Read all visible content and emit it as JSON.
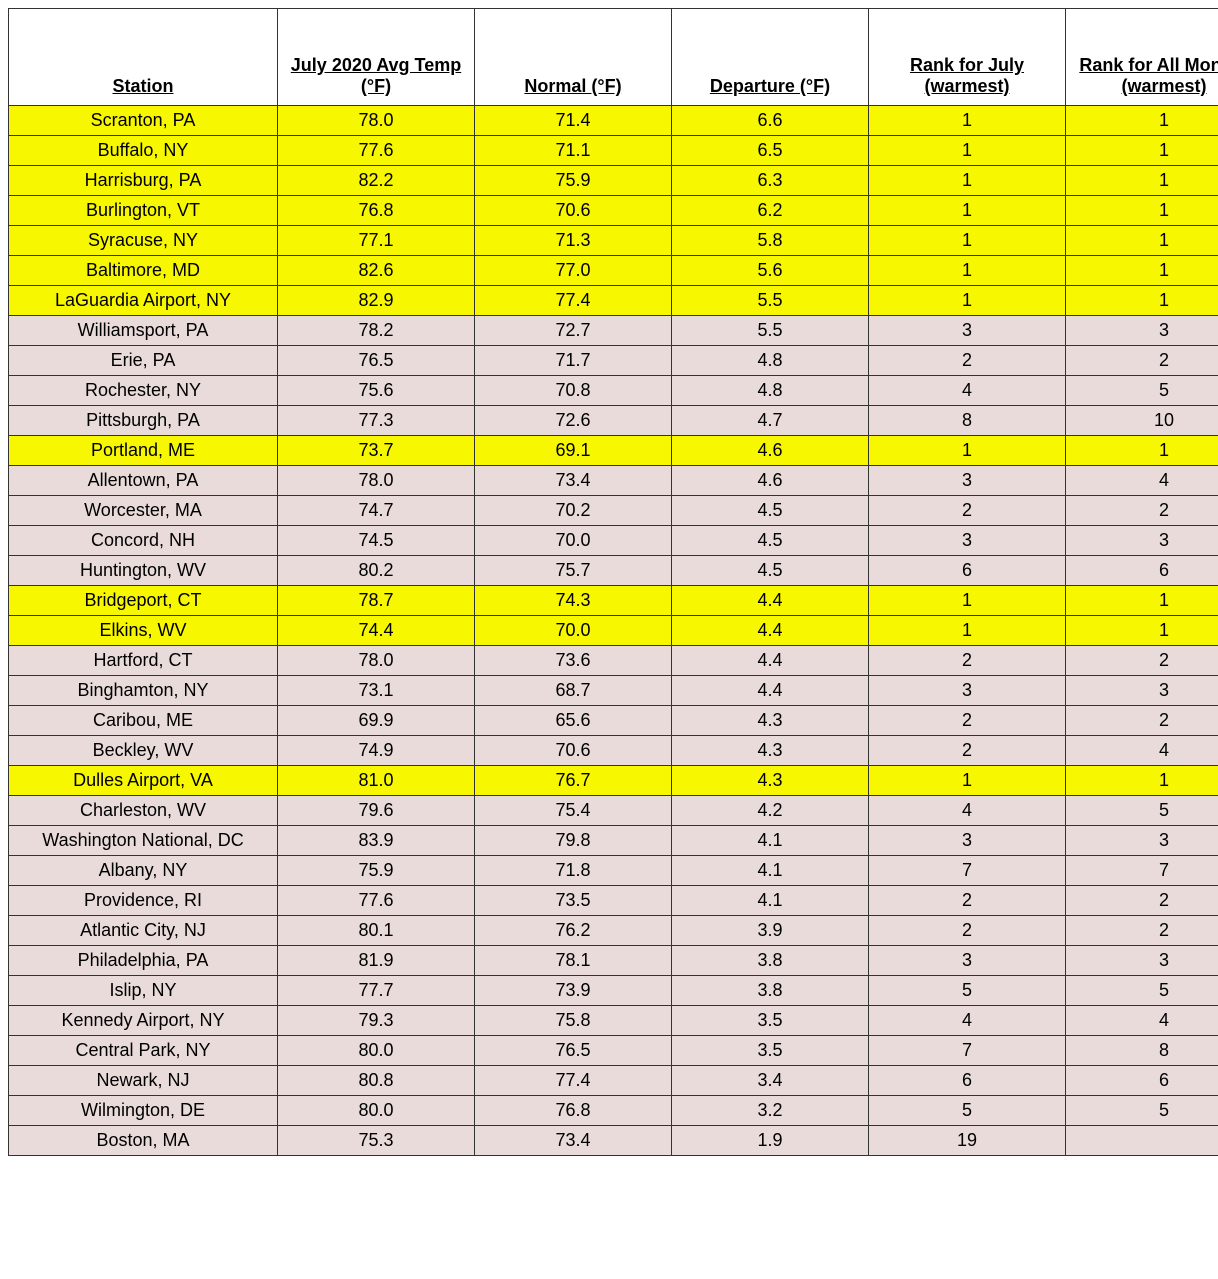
{
  "table": {
    "columns": [
      {
        "label": "Station",
        "class": "col-station"
      },
      {
        "label": "July 2020 Avg Temp (°F)",
        "class": "col-std"
      },
      {
        "label": "Normal (°F)",
        "class": "col-std"
      },
      {
        "label": "Departure (°F)",
        "class": "col-std"
      },
      {
        "label": "Rank for July (warmest)",
        "class": "col-std"
      },
      {
        "label": "Rank for All Months (warmest)",
        "class": "col-std"
      }
    ],
    "row_colors": {
      "highlight": "#f7f700",
      "normal": "#e8dbda"
    },
    "border_color": "#333333",
    "header_bg": "#ffffff",
    "font_family": "Verdana",
    "header_fontsize": 18,
    "cell_fontsize": 18,
    "rows": [
      {
        "station": "Scranton, PA",
        "avg": "78.0",
        "normal": "71.4",
        "dep": "6.6",
        "rank_july": "1",
        "rank_all": "1",
        "hl": true
      },
      {
        "station": "Buffalo, NY",
        "avg": "77.6",
        "normal": "71.1",
        "dep": "6.5",
        "rank_july": "1",
        "rank_all": "1",
        "hl": true
      },
      {
        "station": "Harrisburg, PA",
        "avg": "82.2",
        "normal": "75.9",
        "dep": "6.3",
        "rank_july": "1",
        "rank_all": "1",
        "hl": true
      },
      {
        "station": "Burlington, VT",
        "avg": "76.8",
        "normal": "70.6",
        "dep": "6.2",
        "rank_july": "1",
        "rank_all": "1",
        "hl": true
      },
      {
        "station": "Syracuse, NY",
        "avg": "77.1",
        "normal": "71.3",
        "dep": "5.8",
        "rank_july": "1",
        "rank_all": "1",
        "hl": true
      },
      {
        "station": "Baltimore, MD",
        "avg": "82.6",
        "normal": "77.0",
        "dep": "5.6",
        "rank_july": "1",
        "rank_all": "1",
        "hl": true
      },
      {
        "station": "LaGuardia Airport, NY",
        "avg": "82.9",
        "normal": "77.4",
        "dep": "5.5",
        "rank_july": "1",
        "rank_all": "1",
        "hl": true
      },
      {
        "station": "Williamsport, PA",
        "avg": "78.2",
        "normal": "72.7",
        "dep": "5.5",
        "rank_july": "3",
        "rank_all": "3",
        "hl": false
      },
      {
        "station": "Erie, PA",
        "avg": "76.5",
        "normal": "71.7",
        "dep": "4.8",
        "rank_july": "2",
        "rank_all": "2",
        "hl": false
      },
      {
        "station": "Rochester, NY",
        "avg": "75.6",
        "normal": "70.8",
        "dep": "4.8",
        "rank_july": "4",
        "rank_all": "5",
        "hl": false
      },
      {
        "station": "Pittsburgh, PA",
        "avg": "77.3",
        "normal": "72.6",
        "dep": "4.7",
        "rank_july": "8",
        "rank_all": "10",
        "hl": false
      },
      {
        "station": "Portland, ME",
        "avg": "73.7",
        "normal": "69.1",
        "dep": "4.6",
        "rank_july": "1",
        "rank_all": "1",
        "hl": true
      },
      {
        "station": "Allentown, PA",
        "avg": "78.0",
        "normal": "73.4",
        "dep": "4.6",
        "rank_july": "3",
        "rank_all": "4",
        "hl": false
      },
      {
        "station": "Worcester, MA",
        "avg": "74.7",
        "normal": "70.2",
        "dep": "4.5",
        "rank_july": "2",
        "rank_all": "2",
        "hl": false
      },
      {
        "station": "Concord, NH",
        "avg": "74.5",
        "normal": "70.0",
        "dep": "4.5",
        "rank_july": "3",
        "rank_all": "3",
        "hl": false
      },
      {
        "station": "Huntington, WV",
        "avg": "80.2",
        "normal": "75.7",
        "dep": "4.5",
        "rank_july": "6",
        "rank_all": "6",
        "hl": false
      },
      {
        "station": "Bridgeport, CT",
        "avg": "78.7",
        "normal": "74.3",
        "dep": "4.4",
        "rank_july": "1",
        "rank_all": "1",
        "hl": true
      },
      {
        "station": "Elkins, WV",
        "avg": "74.4",
        "normal": "70.0",
        "dep": "4.4",
        "rank_july": "1",
        "rank_all": "1",
        "hl": true
      },
      {
        "station": "Hartford, CT",
        "avg": "78.0",
        "normal": "73.6",
        "dep": "4.4",
        "rank_july": "2",
        "rank_all": "2",
        "hl": false
      },
      {
        "station": "Binghamton, NY",
        "avg": "73.1",
        "normal": "68.7",
        "dep": "4.4",
        "rank_july": "3",
        "rank_all": "3",
        "hl": false
      },
      {
        "station": "Caribou, ME",
        "avg": "69.9",
        "normal": "65.6",
        "dep": "4.3",
        "rank_july": "2",
        "rank_all": "2",
        "hl": false
      },
      {
        "station": "Beckley, WV",
        "avg": "74.9",
        "normal": "70.6",
        "dep": "4.3",
        "rank_july": "2",
        "rank_all": "4",
        "hl": false
      },
      {
        "station": "Dulles Airport, VA",
        "avg": "81.0",
        "normal": "76.7",
        "dep": "4.3",
        "rank_july": "1",
        "rank_all": "1",
        "hl": true
      },
      {
        "station": "Charleston, WV",
        "avg": "79.6",
        "normal": "75.4",
        "dep": "4.2",
        "rank_july": "4",
        "rank_all": "5",
        "hl": false
      },
      {
        "station": "Washington National, DC",
        "avg": "83.9",
        "normal": "79.8",
        "dep": "4.1",
        "rank_july": "3",
        "rank_all": "3",
        "hl": false
      },
      {
        "station": "Albany, NY",
        "avg": "75.9",
        "normal": "71.8",
        "dep": "4.1",
        "rank_july": "7",
        "rank_all": "7",
        "hl": false
      },
      {
        "station": "Providence, RI",
        "avg": "77.6",
        "normal": "73.5",
        "dep": "4.1",
        "rank_july": "2",
        "rank_all": "2",
        "hl": false
      },
      {
        "station": "Atlantic City, NJ",
        "avg": "80.1",
        "normal": "76.2",
        "dep": "3.9",
        "rank_july": "2",
        "rank_all": "2",
        "hl": false
      },
      {
        "station": "Philadelphia, PA",
        "avg": "81.9",
        "normal": "78.1",
        "dep": "3.8",
        "rank_july": "3",
        "rank_all": "3",
        "hl": false
      },
      {
        "station": "Islip, NY",
        "avg": "77.7",
        "normal": "73.9",
        "dep": "3.8",
        "rank_july": "5",
        "rank_all": "5",
        "hl": false
      },
      {
        "station": "Kennedy Airport, NY",
        "avg": "79.3",
        "normal": "75.8",
        "dep": "3.5",
        "rank_july": "4",
        "rank_all": "4",
        "hl": false
      },
      {
        "station": "Central Park, NY",
        "avg": "80.0",
        "normal": "76.5",
        "dep": "3.5",
        "rank_july": "7",
        "rank_all": "8",
        "hl": false
      },
      {
        "station": "Newark, NJ",
        "avg": "80.8",
        "normal": "77.4",
        "dep": "3.4",
        "rank_july": "6",
        "rank_all": "6",
        "hl": false
      },
      {
        "station": "Wilmington, DE",
        "avg": "80.0",
        "normal": "76.8",
        "dep": "3.2",
        "rank_july": "5",
        "rank_all": "5",
        "hl": false
      },
      {
        "station": "Boston, MA",
        "avg": "75.3",
        "normal": "73.4",
        "dep": "1.9",
        "rank_july": "19",
        "rank_all": "",
        "hl": false
      }
    ]
  }
}
